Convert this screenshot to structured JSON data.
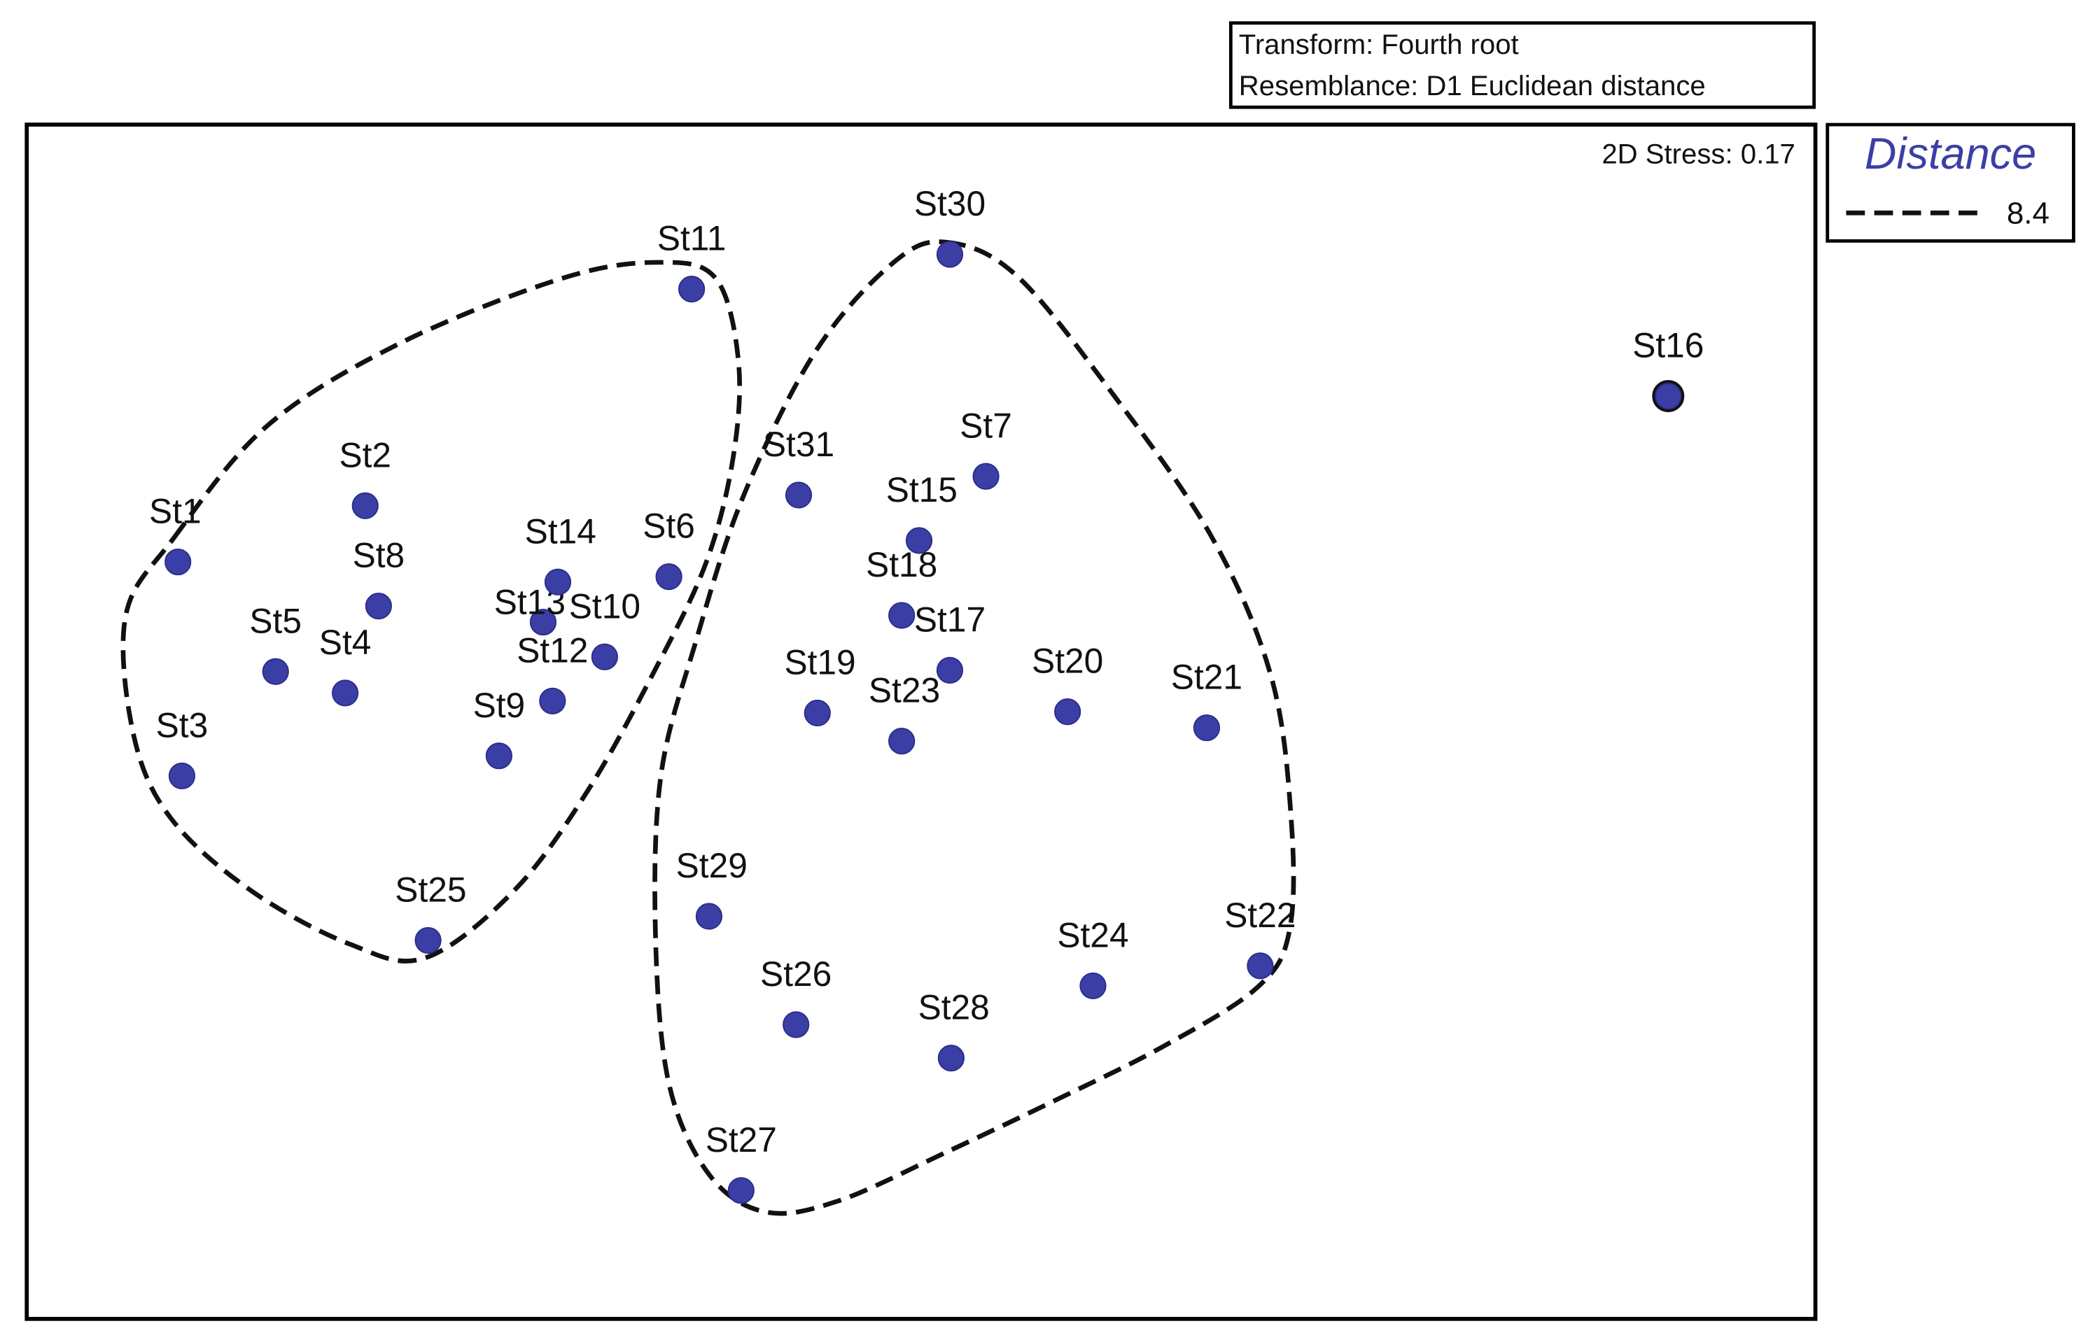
{
  "chart_data": {
    "type": "scatter",
    "title": "",
    "xlabel": "",
    "ylabel": "",
    "grid": false,
    "info_box": {
      "transform": "Transform: Fourth root",
      "resemblance": "Resemblance: D1 Euclidean distance"
    },
    "stress": "2D Stress: 0.17",
    "legend": {
      "title": "Distance",
      "items": [
        {
          "label": "8.4",
          "style": "dashed"
        }
      ],
      "placement": "right"
    },
    "colors": {
      "point": "#3b3fa5",
      "point_edge": "#2a2e8a",
      "contour": "#111111",
      "legend_title": "#3b3fa5"
    },
    "xlim": [
      0,
      1337
    ],
    "ylim": [
      0,
      893
    ],
    "points": [
      {
        "label": "St1",
        "x": 113,
        "y": 566
      },
      {
        "label": "St2",
        "x": 253,
        "y": 608
      },
      {
        "label": "St3",
        "x": 116,
        "y": 406
      },
      {
        "label": "St4",
        "x": 238,
        "y": 468
      },
      {
        "label": "St5",
        "x": 186,
        "y": 484
      },
      {
        "label": "St6",
        "x": 480,
        "y": 555
      },
      {
        "label": "St7",
        "x": 717,
        "y": 630
      },
      {
        "label": "St8",
        "x": 263,
        "y": 533
      },
      {
        "label": "St9",
        "x": 353,
        "y": 421
      },
      {
        "label": "St10",
        "x": 432,
        "y": 495
      },
      {
        "label": "St11",
        "x": 497,
        "y": 770
      },
      {
        "label": "St12",
        "x": 393,
        "y": 462
      },
      {
        "label": "St13",
        "x": 386,
        "y": 521
      },
      {
        "label": "St14",
        "x": 397,
        "y": 551
      },
      {
        "label": "St15",
        "x": 667,
        "y": 582
      },
      {
        "label": "St16",
        "x": 1227,
        "y": 690
      },
      {
        "label": "St17",
        "x": 690,
        "y": 485
      },
      {
        "label": "St18",
        "x": 654,
        "y": 526
      },
      {
        "label": "St19",
        "x": 591,
        "y": 453
      },
      {
        "label": "St20",
        "x": 778,
        "y": 454
      },
      {
        "label": "St21",
        "x": 882,
        "y": 442
      },
      {
        "label": "St22",
        "x": 922,
        "y": 264
      },
      {
        "label": "St23",
        "x": 654,
        "y": 432
      },
      {
        "label": "St24",
        "x": 797,
        "y": 249
      },
      {
        "label": "St25",
        "x": 300,
        "y": 283
      },
      {
        "label": "St26",
        "x": 575,
        "y": 220
      },
      {
        "label": "St27",
        "x": 534,
        "y": 96
      },
      {
        "label": "St28",
        "x": 691,
        "y": 195
      },
      {
        "label": "St29",
        "x": 510,
        "y": 301
      },
      {
        "label": "St30",
        "x": 690,
        "y": 796
      },
      {
        "label": "St31",
        "x": 577,
        "y": 616
      }
    ],
    "clusters": [
      {
        "level": "8.4",
        "members": [
          "St1",
          "St2",
          "St3",
          "St4",
          "St5",
          "St6",
          "St8",
          "St9",
          "St10",
          "St11",
          "St12",
          "St13",
          "St14",
          "St25"
        ]
      },
      {
        "level": "8.4",
        "members": [
          "St7",
          "St15",
          "St17",
          "St18",
          "St19",
          "St20",
          "St21",
          "St22",
          "St23",
          "St24",
          "St26",
          "St27",
          "St28",
          "St29",
          "St30",
          "St31"
        ]
      },
      {
        "level": "8.4",
        "members": [
          "St16"
        ]
      }
    ]
  }
}
